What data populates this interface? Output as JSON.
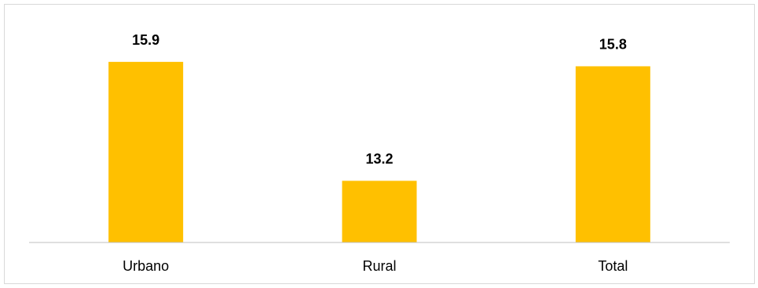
{
  "chart_data": {
    "type": "bar",
    "categories": [
      "Urbano",
      "Rural",
      "Total"
    ],
    "values": [
      15.9,
      13.2,
      15.8
    ],
    "data_labels": [
      "15.9",
      "13.2",
      "15.8"
    ],
    "title": "",
    "xlabel": "",
    "ylabel": "",
    "ylim": [
      11.8,
      16.2
    ],
    "grid": false,
    "legend": "none",
    "bar_color": "#FFC000",
    "axis_color": "#BFBFBF"
  }
}
